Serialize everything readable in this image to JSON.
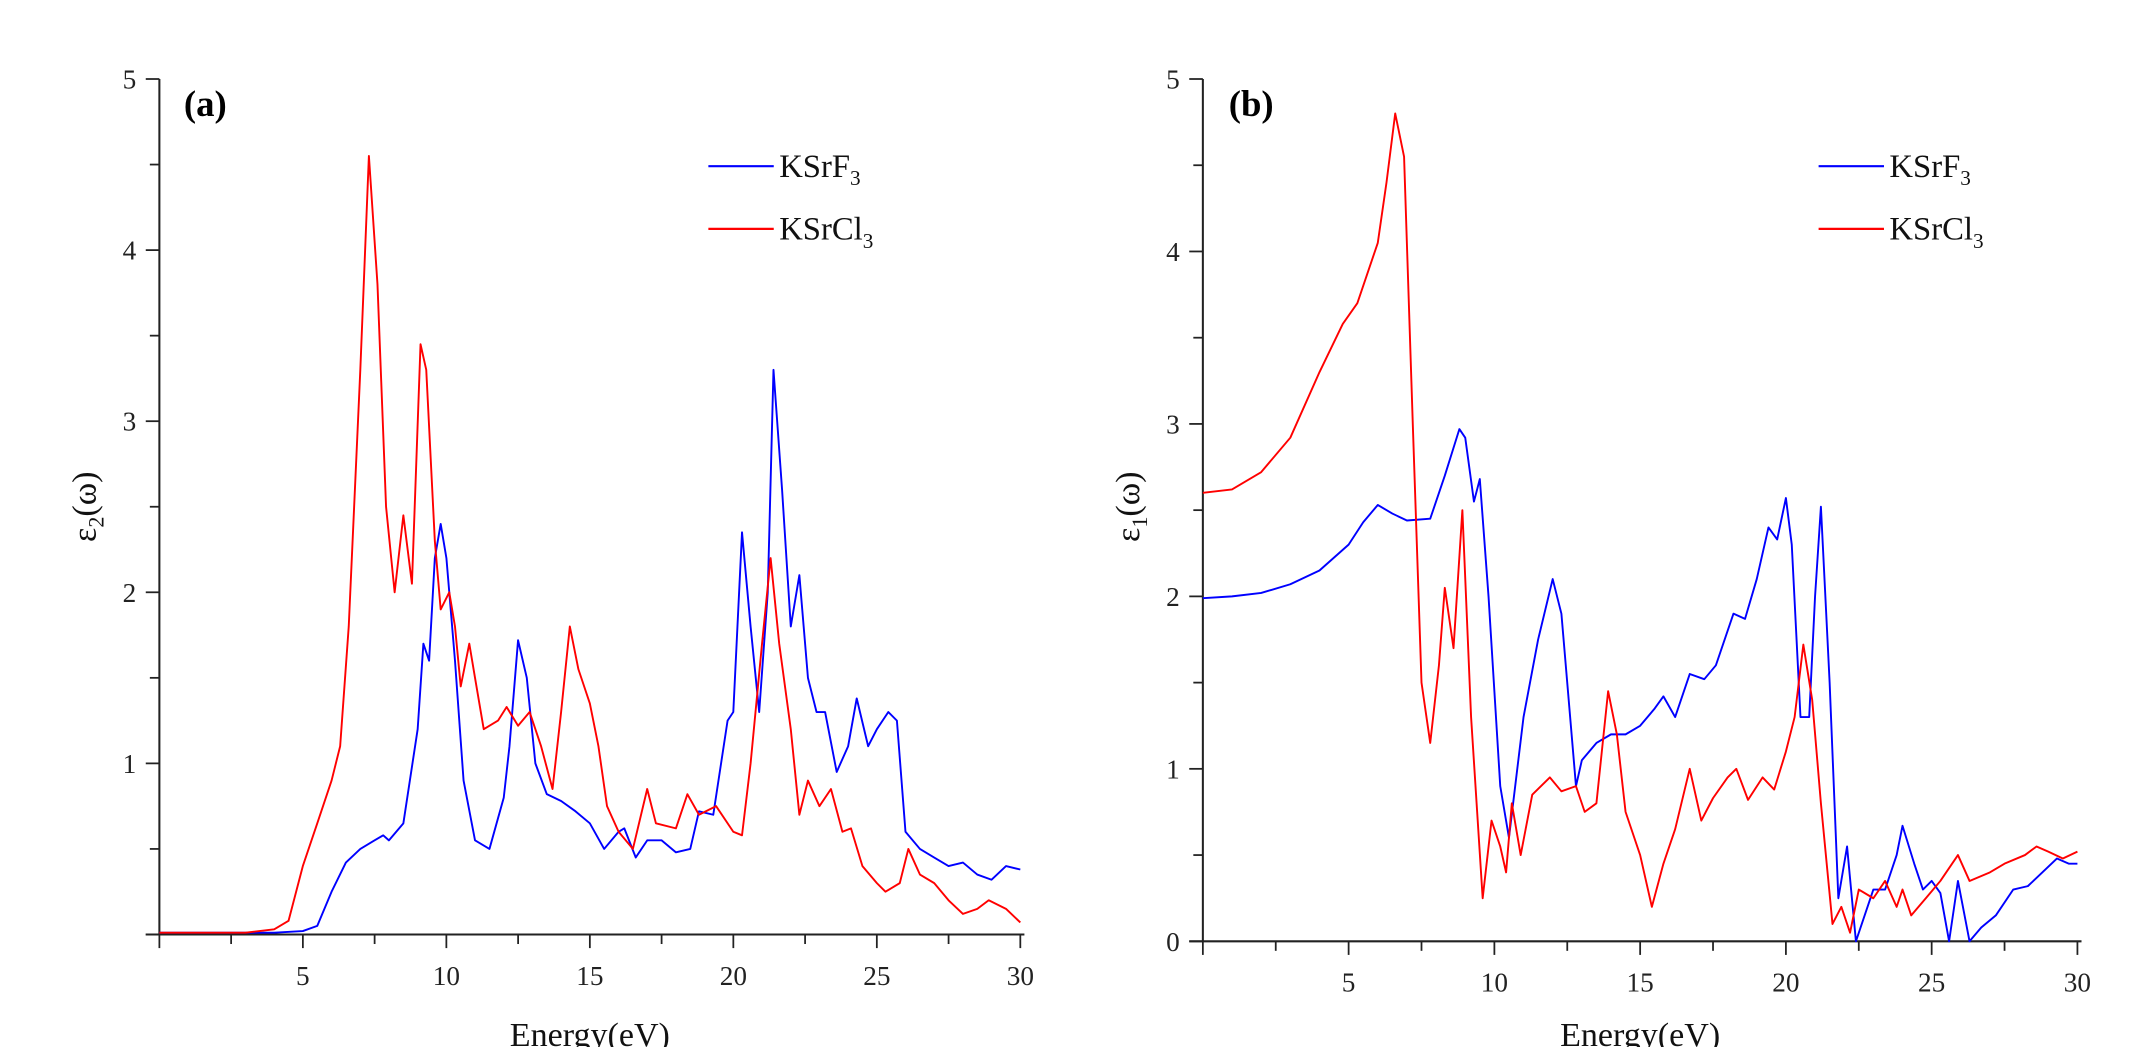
{
  "chart_data": [
    {
      "type": "line",
      "panel_label": "(a)",
      "xlabel": "Energy(eV)",
      "ylabel": "ε2(ω)",
      "xlim": [
        0,
        30
      ],
      "ylim": [
        0,
        5
      ],
      "xticks": [
        5,
        10,
        15,
        20,
        25,
        30
      ],
      "yticks": [
        1,
        2,
        3,
        4,
        5
      ],
      "grid": false,
      "legend_position": "top-right",
      "series": [
        {
          "name": "KSrF3",
          "color": "#0000ff",
          "x": [
            0,
            4,
            5,
            5.5,
            6,
            6.5,
            7,
            7.5,
            7.8,
            8,
            8.5,
            9,
            9.2,
            9.4,
            9.6,
            9.8,
            10,
            10.3,
            10.6,
            11,
            11.5,
            12,
            12.2,
            12.5,
            12.8,
            13.1,
            13.5,
            14,
            14.5,
            15,
            15.5,
            16,
            16.2,
            16.6,
            17,
            17.5,
            18,
            18.5,
            18.8,
            19.3,
            19.8,
            20,
            20.3,
            20.6,
            20.9,
            21.2,
            21.4,
            21.7,
            22,
            22.3,
            22.6,
            22.9,
            23.2,
            23.6,
            24,
            24.3,
            24.7,
            25,
            25.4,
            25.7,
            26,
            26.5,
            27,
            27.5,
            28,
            28.5,
            29,
            29.5,
            30
          ],
          "y": [
            0.01,
            0.01,
            0.02,
            0.05,
            0.25,
            0.42,
            0.5,
            0.55,
            0.58,
            0.55,
            0.65,
            1.2,
            1.7,
            1.6,
            2.2,
            2.4,
            2.2,
            1.6,
            0.9,
            0.55,
            0.5,
            0.8,
            1.1,
            1.72,
            1.5,
            1.0,
            0.82,
            0.78,
            0.72,
            0.65,
            0.5,
            0.6,
            0.62,
            0.45,
            0.55,
            0.55,
            0.48,
            0.5,
            0.72,
            0.7,
            1.25,
            1.3,
            2.35,
            1.8,
            1.3,
            2.0,
            3.3,
            2.6,
            1.8,
            2.1,
            1.5,
            1.3,
            1.3,
            0.95,
            1.1,
            1.38,
            1.1,
            1.2,
            1.3,
            1.25,
            0.6,
            0.5,
            0.45,
            0.4,
            0.42,
            0.35,
            0.32,
            0.4,
            0.38
          ]
        },
        {
          "name": "KSrCl3",
          "color": "#ff0000",
          "x": [
            0,
            3,
            4,
            4.5,
            5,
            5.5,
            6,
            6.3,
            6.6,
            7,
            7.3,
            7.6,
            7.9,
            8.2,
            8.5,
            8.8,
            9.1,
            9.3,
            9.6,
            9.8,
            10.1,
            10.3,
            10.5,
            10.8,
            11,
            11.3,
            11.8,
            12.1,
            12.5,
            12.9,
            13.3,
            13.7,
            14,
            14.3,
            14.6,
            15,
            15.3,
            15.6,
            16,
            16.5,
            17,
            17.3,
            18,
            18.4,
            18.8,
            19.4,
            20,
            20.3,
            20.6,
            21,
            21.3,
            21.6,
            22,
            22.3,
            22.6,
            23,
            23.4,
            23.8,
            24.1,
            24.5,
            25,
            25.3,
            25.8,
            26.1,
            26.5,
            27,
            27.5,
            28,
            28.5,
            28.9,
            29.5,
            30
          ],
          "y": [
            0.01,
            0.01,
            0.03,
            0.08,
            0.4,
            0.65,
            0.9,
            1.1,
            1.8,
            3.3,
            4.55,
            3.8,
            2.5,
            2.0,
            2.45,
            2.05,
            3.45,
            3.3,
            2.3,
            1.9,
            2.0,
            1.8,
            1.45,
            1.7,
            1.5,
            1.2,
            1.25,
            1.33,
            1.22,
            1.3,
            1.1,
            0.85,
            1.3,
            1.8,
            1.55,
            1.35,
            1.1,
            0.75,
            0.6,
            0.5,
            0.85,
            0.65,
            0.62,
            0.82,
            0.7,
            0.75,
            0.6,
            0.58,
            1.0,
            1.7,
            2.2,
            1.7,
            1.2,
            0.7,
            0.9,
            0.75,
            0.85,
            0.6,
            0.62,
            0.4,
            0.3,
            0.25,
            0.3,
            0.5,
            0.35,
            0.3,
            0.2,
            0.12,
            0.15,
            0.2,
            0.15,
            0.07
          ]
        }
      ]
    },
    {
      "type": "line",
      "panel_label": "(b)",
      "xlabel": "Energy(eV)",
      "ylabel": "ε1(ω)",
      "xlim": [
        0,
        30
      ],
      "ylim": [
        0,
        5
      ],
      "xticks": [
        5,
        10,
        15,
        20,
        25,
        30
      ],
      "yticks": [
        0,
        1,
        2,
        3,
        4,
        5
      ],
      "grid": false,
      "legend_position": "top-right",
      "series": [
        {
          "name": "KSrF3",
          "color": "#0000ff",
          "x": [
            0,
            1,
            2,
            3,
            4,
            5,
            5.5,
            6,
            6.5,
            7,
            7.8,
            8.3,
            8.8,
            9,
            9.3,
            9.5,
            9.8,
            10.2,
            10.5,
            11,
            11.5,
            12,
            12.3,
            12.8,
            13,
            13.5,
            14,
            14.5,
            15,
            15.5,
            15.8,
            16.2,
            16.7,
            17.2,
            17.6,
            18.2,
            18.6,
            19,
            19.4,
            19.7,
            20,
            20.2,
            20.5,
            20.8,
            21,
            21.2,
            21.5,
            21.8,
            22.1,
            22.4,
            22.7,
            23,
            23.4,
            23.8,
            24,
            24.4,
            24.7,
            25,
            25.3,
            25.6,
            25.9,
            26.3,
            26.7,
            27.2,
            27.8,
            28.3,
            28.8,
            29.3,
            29.7,
            30
          ],
          "y": [
            1.99,
            2.0,
            2.02,
            2.07,
            2.15,
            2.3,
            2.43,
            2.53,
            2.48,
            2.44,
            2.45,
            2.7,
            2.97,
            2.92,
            2.55,
            2.68,
            2.0,
            0.9,
            0.6,
            1.3,
            1.75,
            2.1,
            1.9,
            0.9,
            1.05,
            1.15,
            1.2,
            1.2,
            1.25,
            1.35,
            1.42,
            1.3,
            1.55,
            1.52,
            1.6,
            1.9,
            1.87,
            2.1,
            2.4,
            2.33,
            2.57,
            2.3,
            1.3,
            1.3,
            2.0,
            2.52,
            1.5,
            0.25,
            0.55,
            0.0,
            0.15,
            0.3,
            0.3,
            0.5,
            0.67,
            0.45,
            0.3,
            0.35,
            0.28,
            0.0,
            0.35,
            0.0,
            0.08,
            0.15,
            0.3,
            0.32,
            0.4,
            0.48,
            0.45,
            0.45
          ]
        },
        {
          "name": "KSrCl3",
          "color": "#ff0000",
          "x": [
            0,
            1,
            2,
            3,
            4,
            4.8,
            5.3,
            6,
            6.3,
            6.6,
            6.9,
            7.2,
            7.5,
            7.8,
            8.1,
            8.3,
            8.6,
            8.9,
            9.2,
            9.6,
            9.9,
            10.2,
            10.4,
            10.6,
            10.9,
            11.3,
            11.9,
            12.3,
            12.8,
            13.1,
            13.5,
            13.9,
            14.2,
            14.5,
            15,
            15.4,
            15.8,
            16.2,
            16.7,
            17.1,
            17.5,
            18,
            18.3,
            18.7,
            19.2,
            19.6,
            20,
            20.3,
            20.6,
            20.9,
            21.2,
            21.6,
            21.9,
            22.2,
            22.5,
            23,
            23.4,
            23.8,
            24,
            24.3,
            24.8,
            25.3,
            25.9,
            26.3,
            27,
            27.5,
            28.2,
            28.6,
            29,
            29.5,
            30
          ],
          "y": [
            2.6,
            2.62,
            2.72,
            2.92,
            3.3,
            3.58,
            3.7,
            4.05,
            4.4,
            4.8,
            4.55,
            3.0,
            1.5,
            1.15,
            1.6,
            2.05,
            1.7,
            2.5,
            1.3,
            0.25,
            0.7,
            0.55,
            0.4,
            0.8,
            0.5,
            0.85,
            0.95,
            0.87,
            0.9,
            0.75,
            0.8,
            1.45,
            1.2,
            0.75,
            0.5,
            0.2,
            0.45,
            0.65,
            1.0,
            0.7,
            0.83,
            0.95,
            1.0,
            0.82,
            0.95,
            0.88,
            1.1,
            1.3,
            1.72,
            1.4,
            0.8,
            0.1,
            0.2,
            0.05,
            0.3,
            0.25,
            0.35,
            0.2,
            0.3,
            0.15,
            0.25,
            0.35,
            0.5,
            0.35,
            0.4,
            0.45,
            0.5,
            0.55,
            0.52,
            0.48,
            0.52
          ]
        }
      ]
    }
  ]
}
